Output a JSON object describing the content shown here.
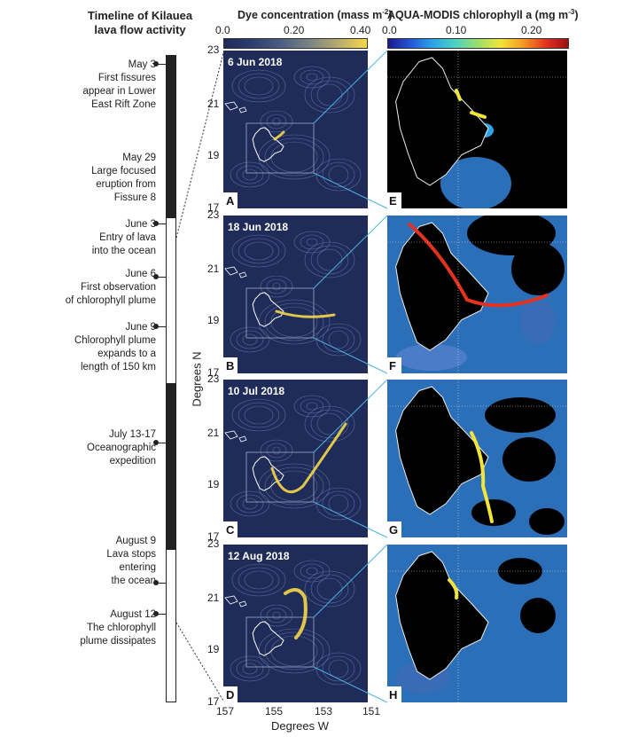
{
  "timeline": {
    "title_line1": "Timeline of Kilauea",
    "title_line2": "lava flow activity",
    "events": [
      {
        "lines": [
          "May 3",
          "First fissures",
          "appear in Lower",
          "East Rift Zone"
        ]
      },
      {
        "lines": [
          "May 29",
          "Large focused",
          "eruption from",
          "Fissure 8"
        ]
      },
      {
        "lines": [
          "June 3",
          "Entry of lava",
          "into the ocean"
        ]
      },
      {
        "lines": [
          "June 6",
          "First observation",
          "of chlorophyll plume"
        ]
      },
      {
        "lines": [
          "June 9",
          "Chlorophyll plume",
          "expands to a",
          "length of 150 km"
        ]
      },
      {
        "lines": [
          "July 13-17",
          "Oceanographic",
          "expedition"
        ]
      },
      {
        "lines": [
          "August 9",
          "Lava stops",
          "entering",
          "the ocean"
        ]
      },
      {
        "lines": [
          "August 12",
          "The chlorophyll",
          "plume dissipates"
        ]
      }
    ]
  },
  "dye_colorbar": {
    "title": "Dye concentration (mass m",
    "title_sup": "-2",
    "title_end": ")",
    "ticks": [
      "0.0",
      "0.20",
      "0.40"
    ]
  },
  "chl_colorbar": {
    "title": "AQUA-MODIS chlorophyll a (mg m",
    "title_sup": "-3",
    "title_end": ")",
    "ticks": [
      "0.0",
      "0.10",
      "0.20"
    ]
  },
  "panels": [
    {
      "date": "6 Jun 2018",
      "left_letter": "A",
      "right_letter": "E"
    },
    {
      "date": "18 Jun 2018",
      "left_letter": "B",
      "right_letter": "F"
    },
    {
      "date": "10 Jul 2018",
      "left_letter": "C",
      "right_letter": "G"
    },
    {
      "date": "12 Aug 2018",
      "left_letter": "D",
      "right_letter": "H"
    }
  ],
  "y_axis": {
    "label": "Degrees N",
    "ticks": [
      "23",
      "21",
      "19",
      "17"
    ]
  },
  "x_axis": {
    "label": "Degrees W",
    "ticks": [
      "157",
      "155",
      "153",
      "151"
    ]
  },
  "colors": {
    "ocean_dark": "#1f2c5a",
    "contour": "#5d6c9c",
    "plume_yellow": "#f5d84a",
    "guide_line": "#4fb3e0",
    "chl_land": "#000000"
  }
}
